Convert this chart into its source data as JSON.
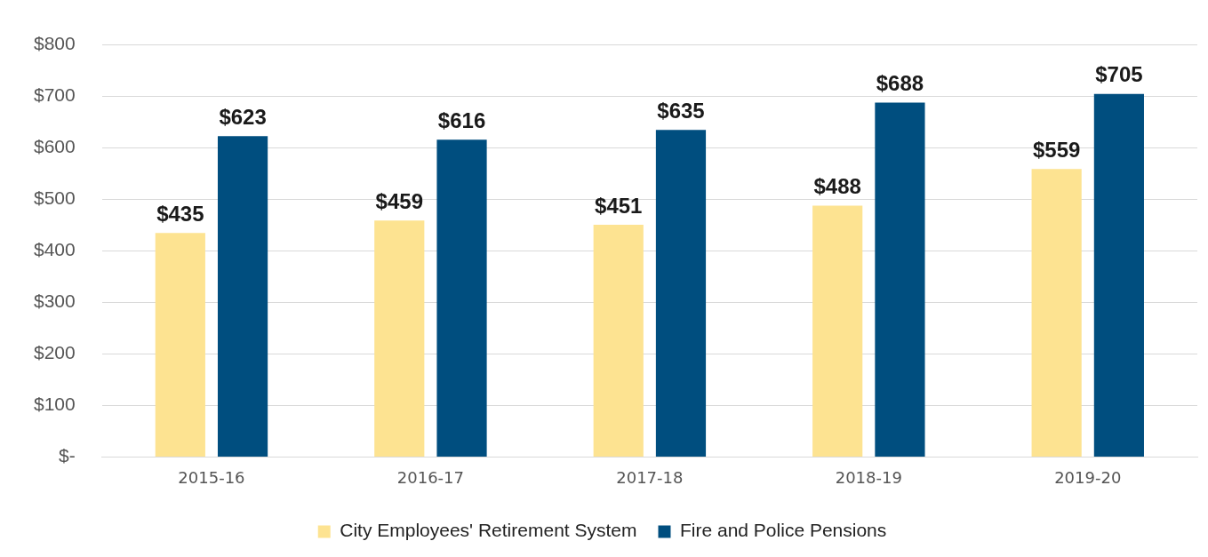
{
  "chart_data": {
    "type": "bar",
    "categories": [
      "2015-16",
      "2016-17",
      "2017-18",
      "2018-19",
      "2019-20"
    ],
    "series": [
      {
        "name": "City Employees' Retirement System",
        "color": "#fde391",
        "values": [
          435,
          459,
          451,
          488,
          559
        ],
        "value_labels": [
          "$435",
          "$459",
          "$451",
          "$488",
          "$559"
        ]
      },
      {
        "name": "Fire and Police Pensions",
        "color": "#004e7f",
        "values": [
          623,
          616,
          635,
          688,
          705
        ],
        "value_labels": [
          "$623",
          "$616",
          "$635",
          "$688",
          "$705"
        ]
      }
    ],
    "ylim": [
      0,
      800
    ],
    "yticks": [
      {
        "value": 0,
        "label": "$-"
      },
      {
        "value": 100,
        "label": "$100"
      },
      {
        "value": 200,
        "label": "$200"
      },
      {
        "value": 300,
        "label": "$300"
      },
      {
        "value": 400,
        "label": "$400"
      },
      {
        "value": 500,
        "label": "$500"
      },
      {
        "value": 600,
        "label": "$600"
      },
      {
        "value": 700,
        "label": "$700"
      },
      {
        "value": 800,
        "label": "$800"
      }
    ],
    "grid": "y",
    "legend": "bottom"
  }
}
